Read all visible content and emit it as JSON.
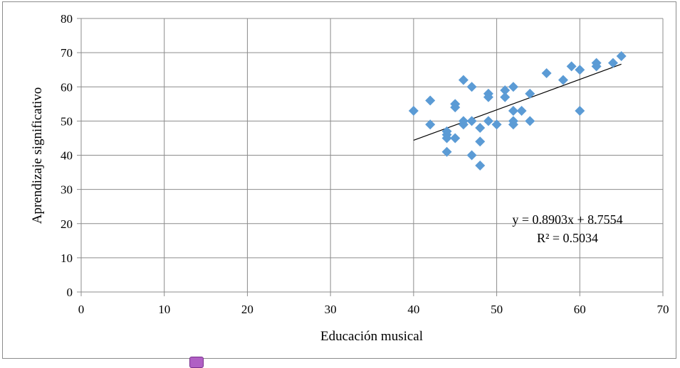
{
  "chart_data": {
    "type": "scatter",
    "title": "",
    "xlabel": "Educación musical",
    "ylabel": "Aprendizaje significativo",
    "xlim": [
      0,
      70
    ],
    "ylim": [
      0,
      80
    ],
    "x_ticks": [
      "0",
      "10",
      "20",
      "30",
      "40",
      "50",
      "60",
      "70"
    ],
    "y_ticks": [
      "0",
      "10",
      "20",
      "30",
      "40",
      "50",
      "60",
      "70",
      "80"
    ],
    "grid": true,
    "marker": "diamond",
    "marker_color": "#5b9bd5",
    "points": [
      {
        "x": 40,
        "y": 53
      },
      {
        "x": 42,
        "y": 56
      },
      {
        "x": 42,
        "y": 49
      },
      {
        "x": 44,
        "y": 47
      },
      {
        "x": 44,
        "y": 46
      },
      {
        "x": 44,
        "y": 45
      },
      {
        "x": 44,
        "y": 41
      },
      {
        "x": 45,
        "y": 55
      },
      {
        "x": 45,
        "y": 54
      },
      {
        "x": 45,
        "y": 45
      },
      {
        "x": 46,
        "y": 62
      },
      {
        "x": 46,
        "y": 50
      },
      {
        "x": 46,
        "y": 49
      },
      {
        "x": 47,
        "y": 60
      },
      {
        "x": 47,
        "y": 50
      },
      {
        "x": 47,
        "y": 40
      },
      {
        "x": 48,
        "y": 48
      },
      {
        "x": 48,
        "y": 44
      },
      {
        "x": 48,
        "y": 37
      },
      {
        "x": 49,
        "y": 58
      },
      {
        "x": 49,
        "y": 57
      },
      {
        "x": 49,
        "y": 50
      },
      {
        "x": 50,
        "y": 49
      },
      {
        "x": 51,
        "y": 59
      },
      {
        "x": 51,
        "y": 57
      },
      {
        "x": 52,
        "y": 60
      },
      {
        "x": 52,
        "y": 53
      },
      {
        "x": 52,
        "y": 50
      },
      {
        "x": 52,
        "y": 49
      },
      {
        "x": 53,
        "y": 53
      },
      {
        "x": 54,
        "y": 58
      },
      {
        "x": 54,
        "y": 50
      },
      {
        "x": 56,
        "y": 64
      },
      {
        "x": 58,
        "y": 62
      },
      {
        "x": 59,
        "y": 66
      },
      {
        "x": 60,
        "y": 65
      },
      {
        "x": 60,
        "y": 53
      },
      {
        "x": 62,
        "y": 67
      },
      {
        "x": 62,
        "y": 66
      },
      {
        "x": 64,
        "y": 67
      },
      {
        "x": 65,
        "y": 69
      }
    ],
    "trendline": {
      "slope": 0.8903,
      "intercept": 8.7554,
      "x_range": [
        40,
        65
      ],
      "equation_label": "y = 0.8903x + 8.7554",
      "r2_label": "R² = 0.5034"
    }
  },
  "colors": {
    "marker": "#5b9bd5",
    "grid": "#8c8c8c",
    "trendline": "#000000",
    "footer_marker": "#b05fc4"
  }
}
